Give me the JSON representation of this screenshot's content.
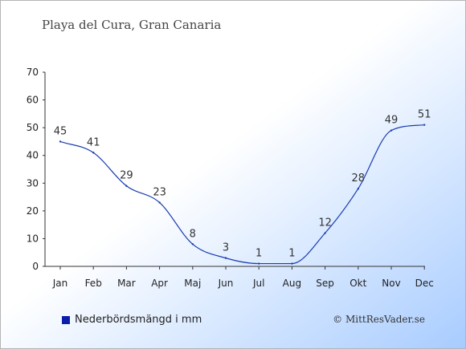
{
  "chart_data": {
    "type": "line",
    "title": "Playa del Cura, Gran Canaria",
    "categories": [
      "Jan",
      "Feb",
      "Mar",
      "Apr",
      "Maj",
      "Jun",
      "Jul",
      "Aug",
      "Sep",
      "Okt",
      "Nov",
      "Dec"
    ],
    "series": [
      {
        "name": "Nederbördsmängd i mm",
        "values": [
          45,
          41,
          29,
          23,
          8,
          3,
          1,
          1,
          12,
          28,
          49,
          51
        ]
      }
    ],
    "value_labels": [
      "45",
      "41",
      "29",
      "23",
      "8",
      "3",
      "1",
      "1",
      "12",
      "28",
      "49",
      "51"
    ],
    "ylim": [
      0,
      70
    ],
    "yticks": [
      "0",
      "10",
      "20",
      "30",
      "40",
      "50",
      "60",
      "70"
    ],
    "xlabel": "",
    "ylabel": "",
    "line_color": "#1a3db0",
    "legend_color": "#0a1eaa",
    "legend_position": "bottom-left"
  },
  "credit": "© MittResVader.se"
}
